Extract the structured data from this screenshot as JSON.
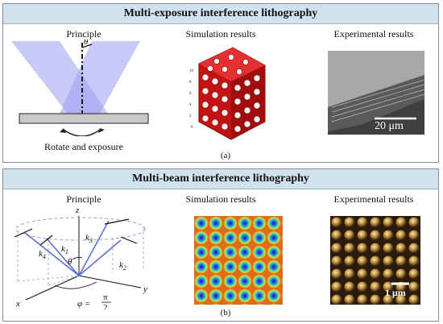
{
  "top_panel": {
    "title": "Multi-exposure interference lithography",
    "columns": {
      "principle": "Principle",
      "simulation": "Simulation results",
      "experimental": "Experimental results"
    },
    "rotate_label": "Rotate and exposure",
    "theta_label": "θ",
    "caption": "(a)",
    "scale_bar": "20 μm",
    "axis_ticks": [
      "10",
      "8",
      "6",
      "4",
      "2",
      "0"
    ]
  },
  "bottom_panel": {
    "title": "Multi-beam interference lithography",
    "columns": {
      "principle": "Principle",
      "simulation": "Simulation results",
      "experimental": "Experimental results"
    },
    "caption": "(b)",
    "scale_bar": "1 μm",
    "axis": {
      "x": "x",
      "y": "y",
      "z": "z"
    },
    "vectors": {
      "k1": "k",
      "k2": "k",
      "k3": "k",
      "k4": "k"
    },
    "vector_subscripts": {
      "k1": "1",
      "k2": "2",
      "k3": "3",
      "k4": "4"
    },
    "theta_label": "θ",
    "phi_label": "φ =",
    "phi_num": "π",
    "phi_den": "2"
  },
  "colors": {
    "header_bg": "#cfe2ee",
    "beam": "#9c9cf0",
    "lattice_red": "#c31212",
    "vector_blue": "#5b6fd6"
  }
}
